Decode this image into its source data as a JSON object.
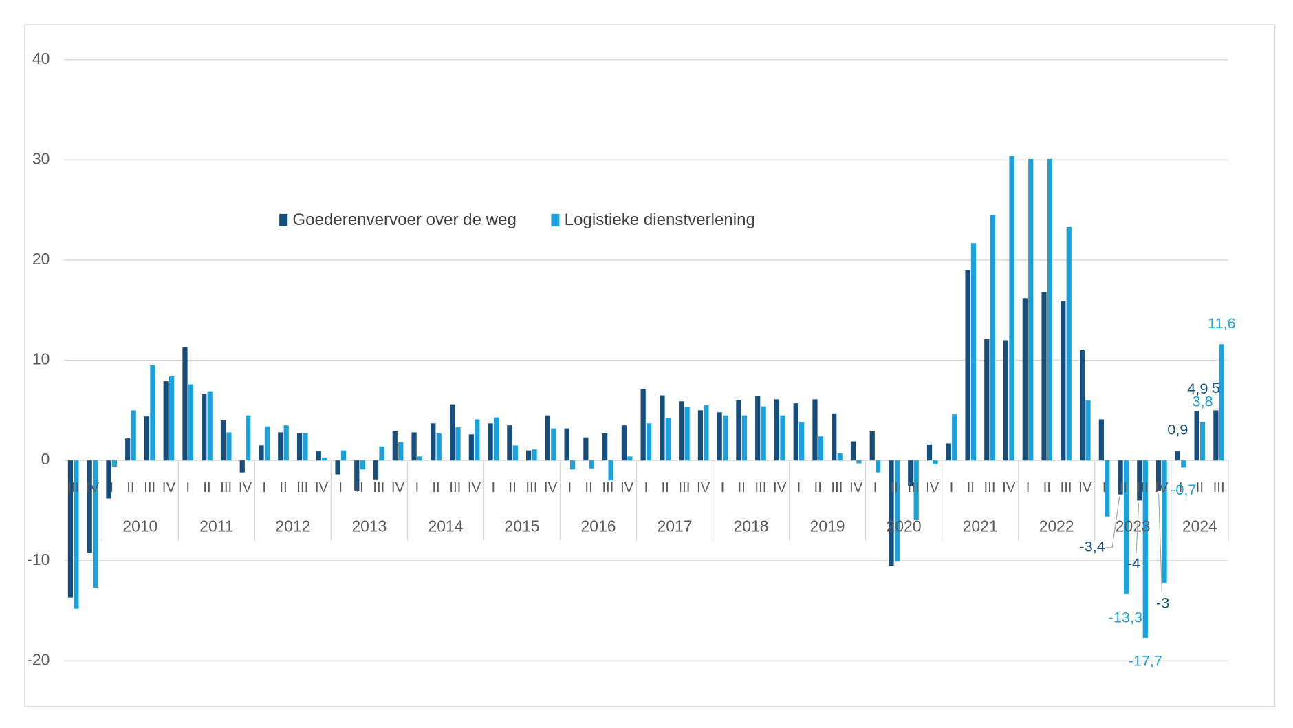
{
  "chart_data": {
    "type": "bar",
    "ylim": [
      -20,
      40
    ],
    "yticks": [
      -20,
      -10,
      0,
      10,
      20,
      30,
      40
    ],
    "grid": "horizontal",
    "legend_position": "upper-center",
    "category_groups": [
      {
        "year": "",
        "quarters": [
          "III",
          "IV"
        ]
      },
      {
        "year": "2010",
        "quarters": [
          "I",
          "II",
          "III",
          "IV"
        ]
      },
      {
        "year": "2011",
        "quarters": [
          "I",
          "II",
          "III",
          "IV"
        ]
      },
      {
        "year": "2012",
        "quarters": [
          "I",
          "II",
          "III",
          "IV"
        ]
      },
      {
        "year": "2013",
        "quarters": [
          "I",
          "II",
          "III",
          "IV"
        ]
      },
      {
        "year": "2014",
        "quarters": [
          "I",
          "II",
          "III",
          "IV"
        ]
      },
      {
        "year": "2015",
        "quarters": [
          "I",
          "II",
          "III",
          "IV"
        ]
      },
      {
        "year": "2016",
        "quarters": [
          "I",
          "II",
          "III",
          "IV"
        ]
      },
      {
        "year": "2017",
        "quarters": [
          "I",
          "II",
          "III",
          "IV"
        ]
      },
      {
        "year": "2018",
        "quarters": [
          "I",
          "II",
          "III",
          "IV"
        ]
      },
      {
        "year": "2019",
        "quarters": [
          "I",
          "II",
          "III",
          "IV"
        ]
      },
      {
        "year": "2020",
        "quarters": [
          "I",
          "II",
          "III",
          "IV"
        ]
      },
      {
        "year": "2021",
        "quarters": [
          "I",
          "II",
          "III",
          "IV"
        ]
      },
      {
        "year": "2022",
        "quarters": [
          "I",
          "II",
          "III",
          "IV"
        ]
      },
      {
        "year": "2023",
        "quarters": [
          "I",
          "II",
          "III",
          "IV"
        ]
      },
      {
        "year": "2024",
        "quarters": [
          "I",
          "II",
          "III"
        ]
      }
    ],
    "series": [
      {
        "name": "Goederenvervoer over de weg",
        "color": "#164f7d",
        "values": [
          -13.7,
          -9.2,
          -3.8,
          2.2,
          4.4,
          7.9,
          11.3,
          6.6,
          4.0,
          -1.2,
          1.5,
          2.8,
          2.7,
          0.9,
          -1.4,
          -3.0,
          -1.9,
          2.9,
          2.8,
          3.7,
          5.6,
          2.6,
          3.7,
          3.5,
          1.0,
          4.5,
          3.2,
          2.3,
          2.7,
          3.5,
          7.1,
          6.5,
          5.9,
          5.0,
          4.8,
          6.0,
          6.4,
          6.1,
          5.7,
          6.1,
          4.7,
          1.9,
          2.9,
          -10.5,
          -2.6,
          1.6,
          1.7,
          19.0,
          12.1,
          12.0,
          16.2,
          16.8,
          15.9,
          11.0,
          4.1,
          -3.4,
          -4.0,
          -3.0,
          0.9,
          4.9,
          5.0
        ]
      },
      {
        "name": "Logistieke dienstverlening",
        "color": "#1ba1db",
        "values": [
          -14.8,
          -12.7,
          -0.6,
          5.0,
          9.5,
          8.4,
          7.6,
          6.9,
          2.8,
          4.5,
          3.4,
          3.5,
          2.7,
          0.3,
          1.0,
          -0.9,
          1.4,
          1.8,
          0.4,
          2.7,
          3.3,
          4.1,
          4.3,
          1.5,
          1.1,
          3.2,
          -0.9,
          -0.8,
          -2.0,
          0.4,
          3.7,
          4.2,
          5.3,
          5.5,
          4.5,
          4.5,
          5.4,
          4.5,
          3.8,
          2.4,
          0.7,
          -0.3,
          -1.2,
          -10.1,
          -5.9,
          -0.4,
          4.6,
          21.7,
          24.5,
          30.4,
          30.1,
          30.1,
          23.3,
          6.0,
          -5.6,
          -13.3,
          -17.7,
          -12.2,
          -0.7,
          3.8,
          11.6
        ]
      }
    ],
    "data_labels": [
      {
        "series": 0,
        "year": "2023",
        "quarter": "II",
        "text": "-3,4"
      },
      {
        "series": 1,
        "year": "2023",
        "quarter": "II",
        "text": "-13,3"
      },
      {
        "series": 0,
        "year": "2023",
        "quarter": "III",
        "text": "-4"
      },
      {
        "series": 1,
        "year": "2023",
        "quarter": "III",
        "text": "-17,7"
      },
      {
        "series": 0,
        "year": "2023",
        "quarter": "IV",
        "text": "-3"
      },
      {
        "series": 0,
        "year": "2024",
        "quarter": "I",
        "text": "0,9"
      },
      {
        "series": 1,
        "year": "2024",
        "quarter": "I",
        "text": "-0,7"
      },
      {
        "series": 0,
        "year": "2024",
        "quarter": "II",
        "text": "4,9"
      },
      {
        "series": 1,
        "year": "2024",
        "quarter": "II",
        "text": "3,8"
      },
      {
        "series": 0,
        "year": "2024",
        "quarter": "III",
        "text": "5"
      },
      {
        "series": 1,
        "year": "2024",
        "quarter": "III",
        "text": "11,6"
      }
    ]
  }
}
